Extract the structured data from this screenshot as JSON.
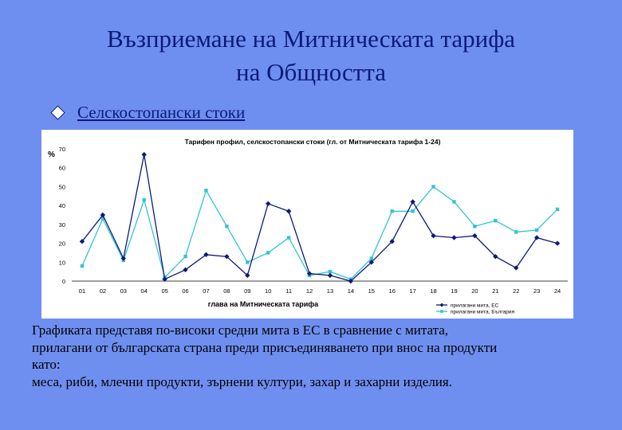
{
  "slide": {
    "title_line1": "Възприемане на  Митническата тарифа",
    "title_line2": "на Общността",
    "bullet": "Селскостопански стоки",
    "caption_lines": [
      "Графиката представя по-високи средни мита в ЕС в сравнение с митата,",
      "прилагани от българската страна преди присъединяването при внос на продукти",
      "като:",
      "меса, риби, млечни продукти, зърнени култури, захар и захарни изделия."
    ]
  },
  "colors": {
    "background": "#6f8ff0",
    "title": "#0b1a78",
    "series_eu": "#0b1a78",
    "series_bg": "#33c3d6"
  },
  "chart_data": {
    "type": "line",
    "title": "Тарифен профил, селскостопански стоки (гл. от Митническата тарифа 1-24)",
    "xlabel": "глава на Митническата тарифа",
    "ylabel": "%",
    "categories": [
      "01",
      "02",
      "03",
      "04",
      "05",
      "06",
      "07",
      "08",
      "09",
      "10",
      "11",
      "12",
      "13",
      "14",
      "15",
      "16",
      "17",
      "18",
      "19",
      "20",
      "21",
      "22",
      "23",
      "24"
    ],
    "ylim": [
      0,
      70
    ],
    "yticks": [
      0,
      10,
      20,
      30,
      40,
      50,
      60,
      70
    ],
    "grid": false,
    "legend_position": "bottom-right",
    "series": [
      {
        "name": "прилагани мита, ЕС",
        "marker": "diamond",
        "values": [
          21,
          35,
          12,
          67,
          1,
          6,
          14,
          13,
          3,
          41,
          37,
          4,
          3,
          0,
          10,
          21,
          42,
          24,
          23,
          24,
          13,
          7,
          23,
          20
        ]
      },
      {
        "name": "прилагани мита, България",
        "marker": "square",
        "values": [
          8,
          33,
          11,
          43,
          2,
          13,
          48,
          29,
          10,
          15,
          23,
          3,
          5,
          1,
          12,
          37,
          37,
          50,
          42,
          29,
          32,
          26,
          27,
          38
        ]
      }
    ]
  }
}
